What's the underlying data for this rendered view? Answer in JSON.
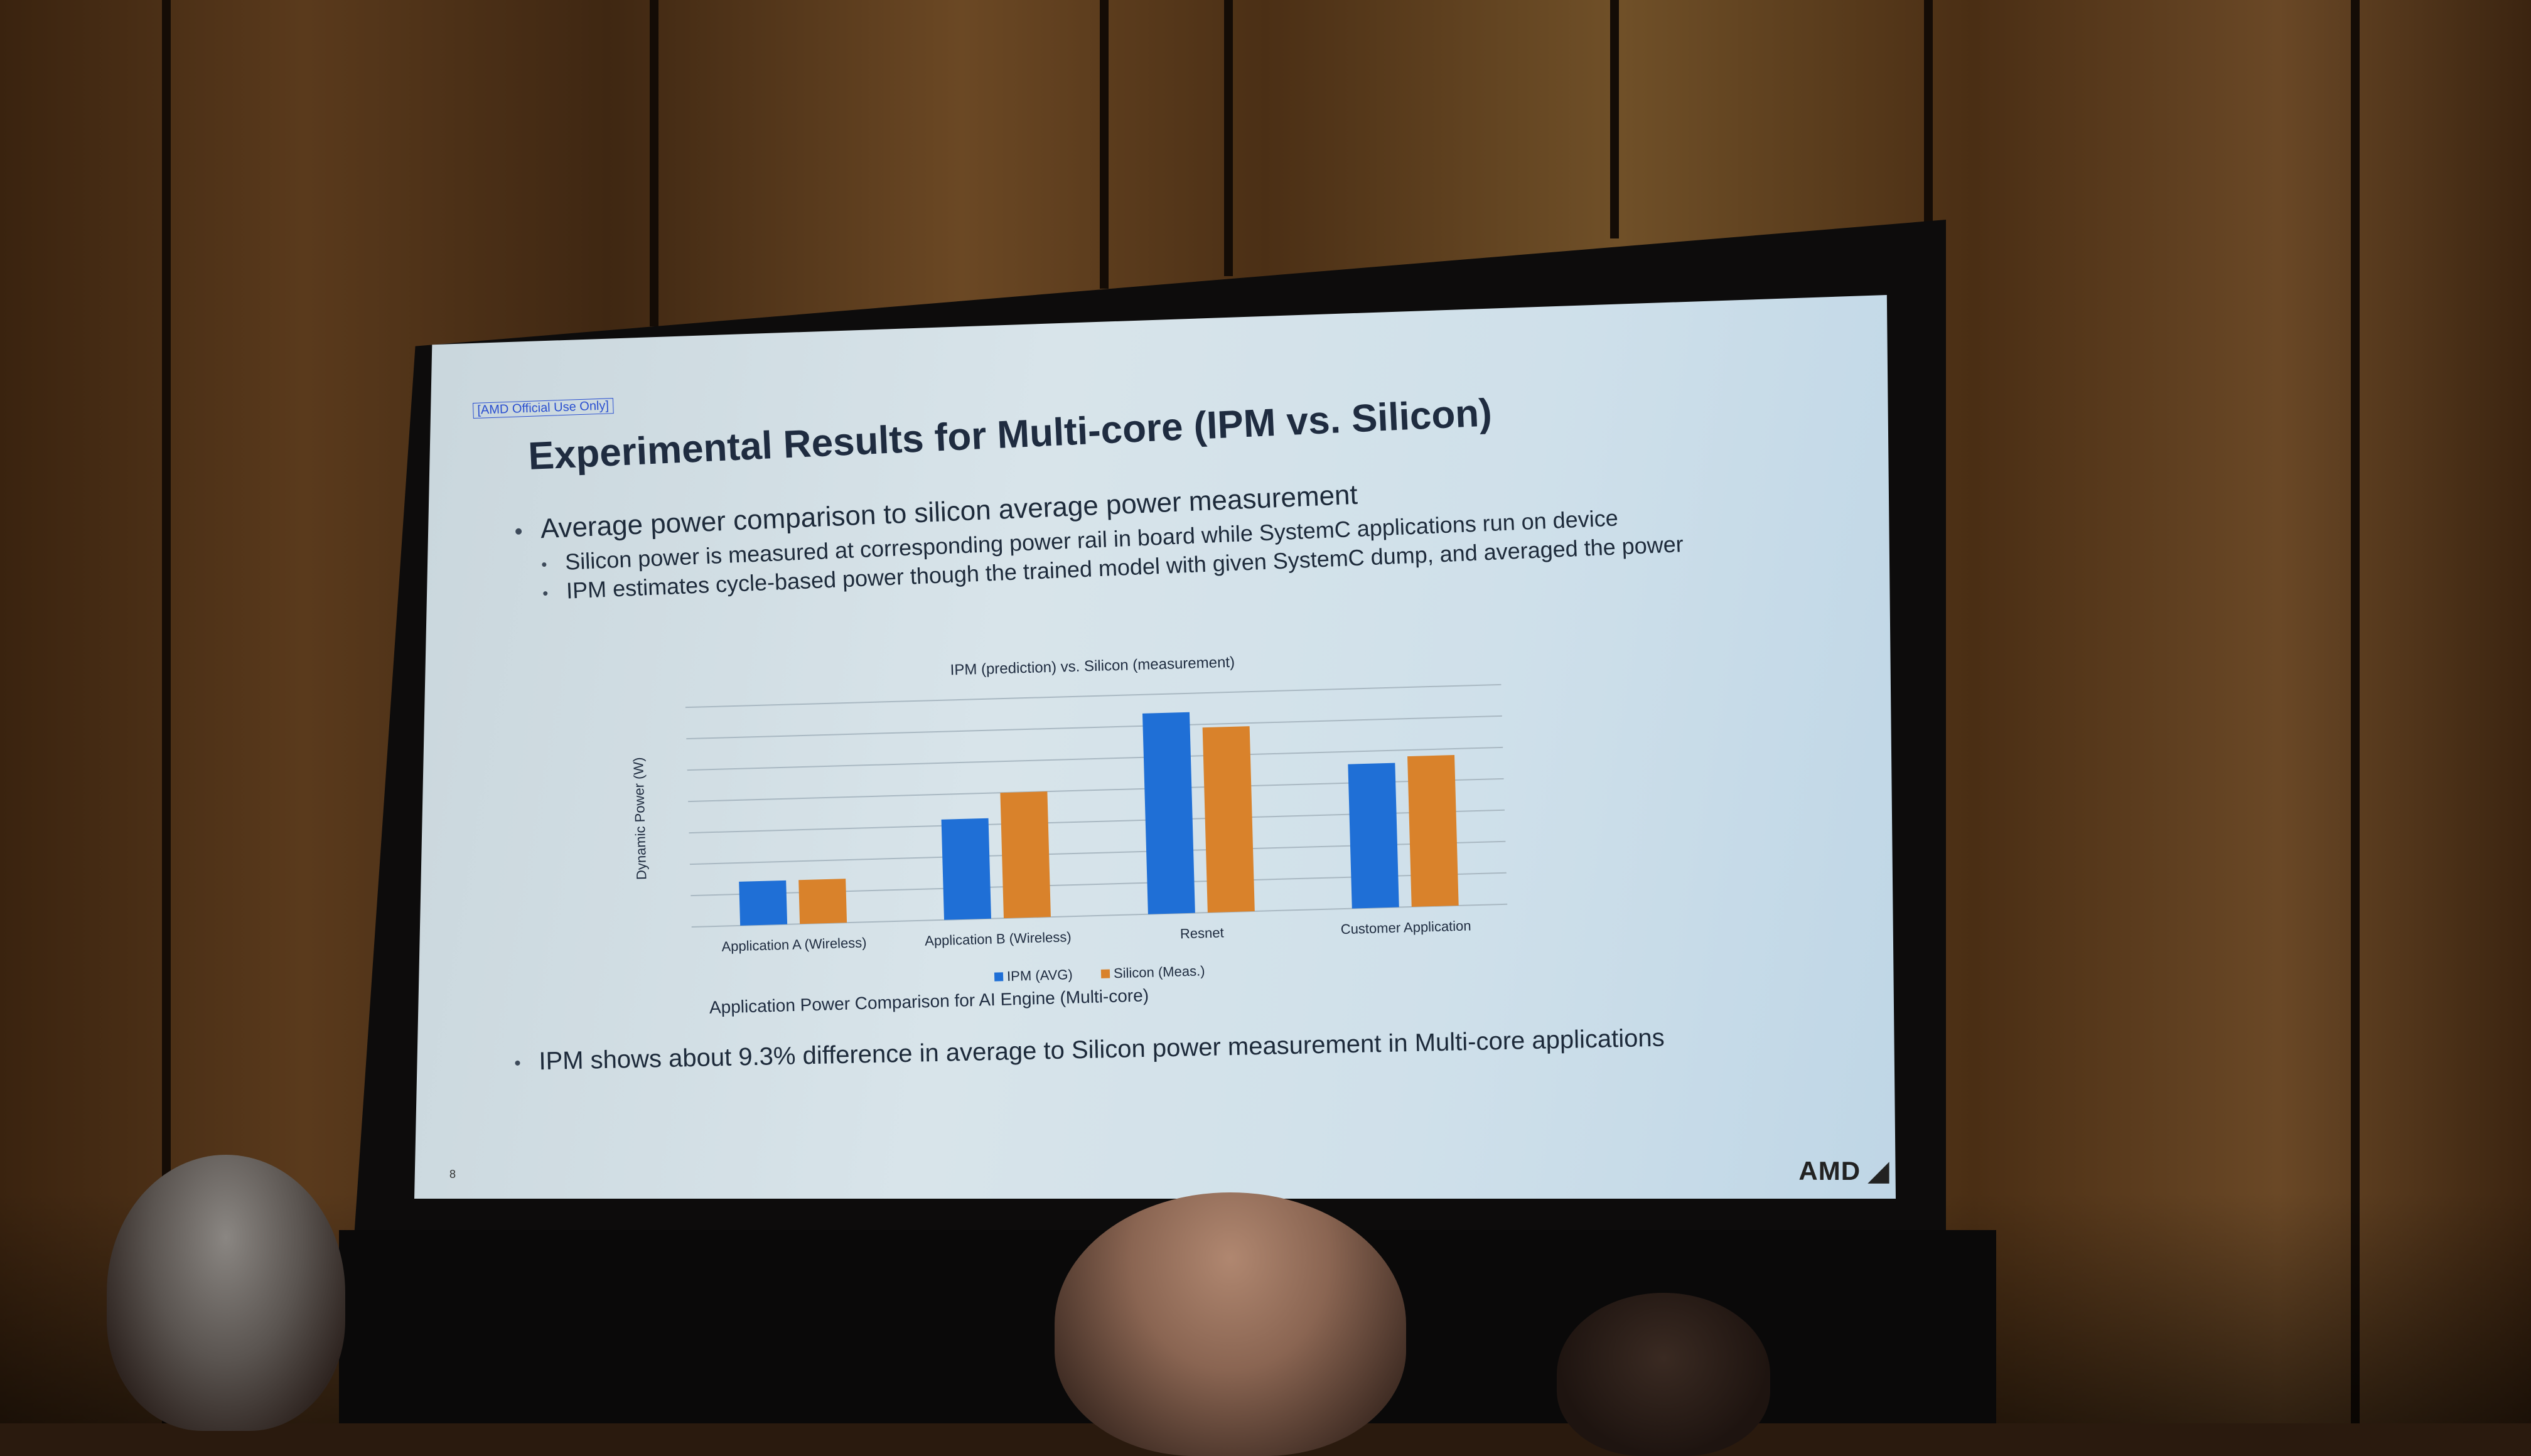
{
  "slide": {
    "official_tag": "[AMD Official Use Only]",
    "title": "Experimental Results for Multi-core (IPM vs. Silicon)",
    "bullet_main": "Average power comparison to silicon average power measurement",
    "sub_bullets": [
      "Silicon power is measured at corresponding power rail in board while SystemC applications run on device",
      "IPM estimates cycle-based power though the trained model with given SystemC dump, and averaged the power"
    ],
    "chart_caption": "Application Power Comparison for AI Engine (Multi-core)",
    "bottom_bullet": "IPM shows about 9.3% difference in average  to Silicon power measurement in Multi-core applications",
    "logo": "AMD",
    "page_number": "8"
  },
  "chart_data": {
    "type": "bar",
    "title": "IPM (prediction) vs. Silicon (measurement)",
    "ylabel": "Dynamic Power (W)",
    "categories": [
      "Application A (Wireless)",
      "Application B (Wireless)",
      "Resnet",
      "Customer Application"
    ],
    "series": [
      {
        "name": "IPM (AVG)",
        "values": [
          1.4,
          3.2,
          6.4,
          4.6
        ],
        "color": "#1f6fd6"
      },
      {
        "name": "Silicon (Meas.)",
        "values": [
          1.4,
          4.0,
          5.9,
          4.8
        ],
        "color": "#d9822b"
      }
    ],
    "ylim": [
      0,
      7
    ],
    "grid": true,
    "legend": "bottom"
  },
  "colors": {
    "ipm": "#1f6fd6",
    "silicon": "#d9822b"
  }
}
